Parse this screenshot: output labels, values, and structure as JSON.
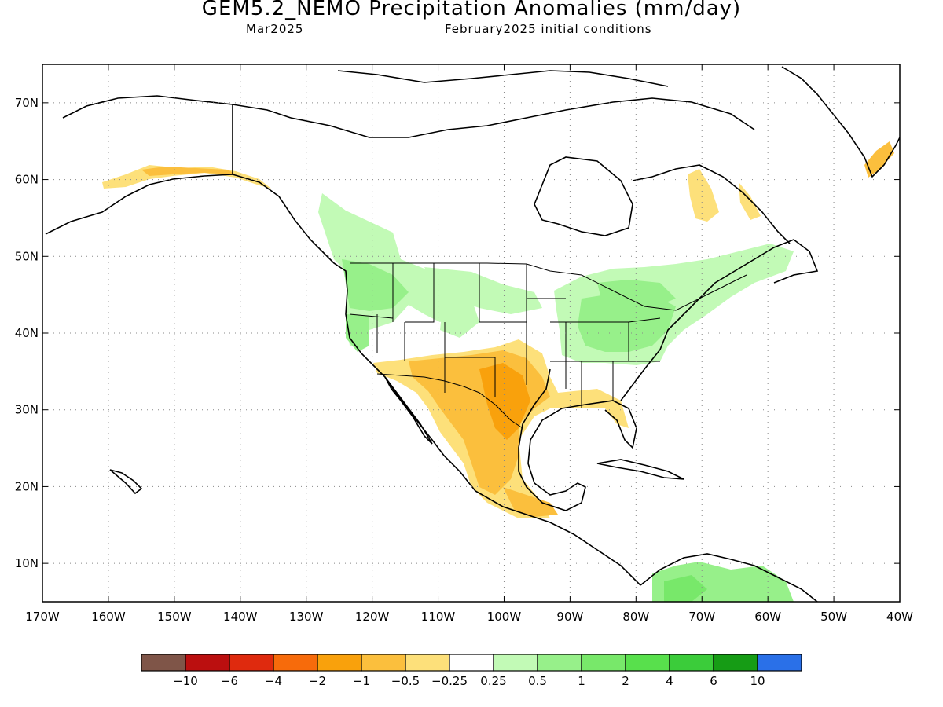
{
  "map": {
    "title": "GEM5.2_NEMO Precipitation Anomalies (mm/day)",
    "valid_month": "Mar2025",
    "initial_conditions": "February2025 initial conditions",
    "lat_labels": [
      "70N",
      "60N",
      "50N",
      "40N",
      "30N",
      "20N",
      "10N"
    ],
    "lon_labels": [
      "170W",
      "160W",
      "150W",
      "140W",
      "130W",
      "120W",
      "110W",
      "100W",
      "90W",
      "80W",
      "70W",
      "60W",
      "50W",
      "40W"
    ],
    "lat_range": [
      5,
      75
    ],
    "lon_range": [
      -170,
      -40
    ],
    "grid": true
  },
  "colorbar": {
    "colors": [
      "#7f5548",
      "#bb0f0f",
      "#df2a0e",
      "#f76b0b",
      "#f9a10c",
      "#fbbf3d",
      "#fde07a",
      "#ffffff",
      "#c2fab6",
      "#97f08a",
      "#78e86a",
      "#58e04c",
      "#3bcc3a",
      "#169c15",
      "#2a70e8"
    ],
    "labels": [
      "−10",
      "−6",
      "−4",
      "−2",
      "−1",
      "−0.5",
      "−0.25",
      "0.25",
      "0.5",
      "1",
      "2",
      "4",
      "6",
      "10"
    ]
  },
  "legend_colors": {
    "dry_light": "#fde07a",
    "dry_mid": "#fbbf3d",
    "dry_strong": "#f9a10c",
    "wet_light": "#c2fab6",
    "wet_mid": "#97f08a",
    "wet_strong": "#78e86a"
  }
}
